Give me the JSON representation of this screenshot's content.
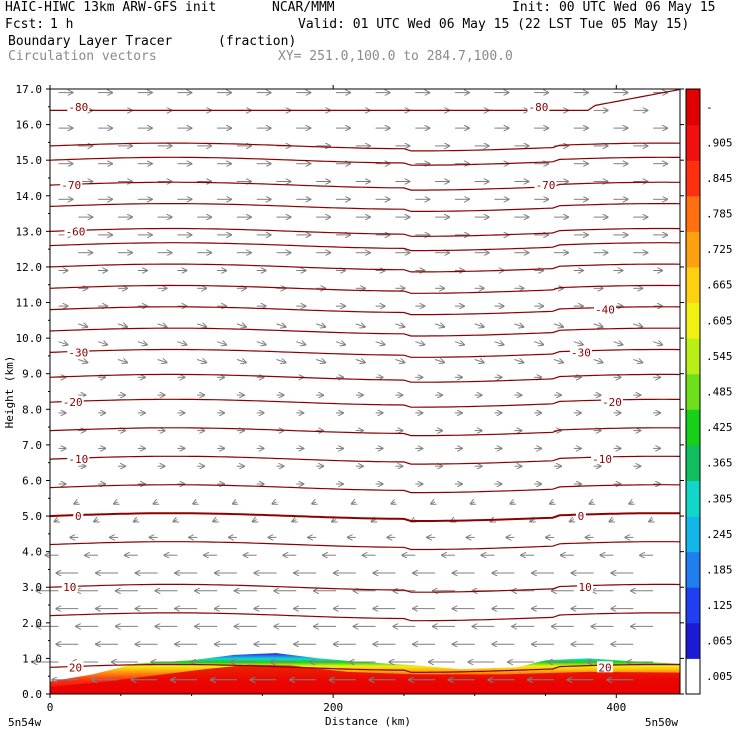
{
  "header": {
    "model": "HAIC-HIWC 13km ARW-GFS init",
    "org": "NCAR/MMM",
    "init": "Init: 00 UTC Wed 06 May 15",
    "fcst_label": "Fcst:",
    "fcst_value": "1 h",
    "valid": "Valid: 01 UTC Wed 06 May 15 (22 LST Tue 05 May 15)",
    "field1": "Boundary Layer Tracer",
    "field1_units": "(fraction)",
    "field2": "Circulation vectors",
    "xy": "XY= 251.0,100.0 to 284.7,100.0"
  },
  "chart_data": {
    "type": "heatmap",
    "ylabel": "Height (km)",
    "xlabel": "Distance (km)",
    "ylim": [
      0,
      17
    ],
    "xlim": [
      0,
      445
    ],
    "y_ticks": [
      "0.0",
      "1.0",
      "2.0",
      "3.0",
      "4.0",
      "5.0",
      "6.0",
      "7.0",
      "8.0",
      "9.0",
      "10.0",
      "11.0",
      "12.0",
      "13.0",
      "14.0",
      "15.0",
      "16.0",
      "17.0"
    ],
    "x_ticks": [
      {
        "value": 0,
        "label": "0"
      },
      {
        "value": 200,
        "label": "200"
      },
      {
        "value": 400,
        "label": "400"
      }
    ],
    "x_endpoints": {
      "left": "5n54w",
      "right": "5n50w"
    },
    "colorbar": {
      "labels": [
        ".005",
        ".065",
        ".125",
        ".185",
        ".245",
        ".305",
        ".365",
        ".425",
        ".485",
        ".545",
        ".605",
        ".665",
        ".725",
        ".785",
        ".845",
        ".905",
        "-"
      ],
      "colors": [
        "#ffffff",
        "#1b1bd6",
        "#1f3ff0",
        "#1f7ef0",
        "#12b6e8",
        "#10d7c8",
        "#0fbf60",
        "#19d019",
        "#6ee01a",
        "#b8ef16",
        "#f0f012",
        "#ffd010",
        "#ffa00f",
        "#ff700e",
        "#ff3010",
        "#f01010",
        "#e00000"
      ]
    },
    "temperature_contours": [
      {
        "level": "20",
        "y": 0.75,
        "label_x": [
          18,
          392
        ]
      },
      {
        "level": "10",
        "y": 3.0,
        "label_x": [
          14,
          378
        ]
      },
      {
        "level": "0",
        "y": 5.0,
        "label_x": [
          20,
          375
        ]
      },
      {
        "level": "-10",
        "y": 6.6,
        "label_x": [
          20,
          390
        ]
      },
      {
        "level": "-20",
        "y": 8.2,
        "label_x": [
          16,
          397
        ]
      },
      {
        "level": "-30",
        "y": 9.6,
        "label_x": [
          20,
          375
        ]
      },
      {
        "level": "-40",
        "y": 10.8,
        "label_x": [
          392
        ]
      },
      {
        "level": "-60",
        "y": 13.0,
        "label_x": [
          18
        ]
      },
      {
        "level": "-70",
        "y": 14.3,
        "label_x": [
          15,
          350
        ]
      },
      {
        "level": "-80",
        "y": 16.5,
        "label_x": [
          20,
          345
        ]
      }
    ],
    "wind_direction": {
      "below_km": 4.5,
      "low_level": "easterly",
      "upper_level": "westerly"
    }
  }
}
